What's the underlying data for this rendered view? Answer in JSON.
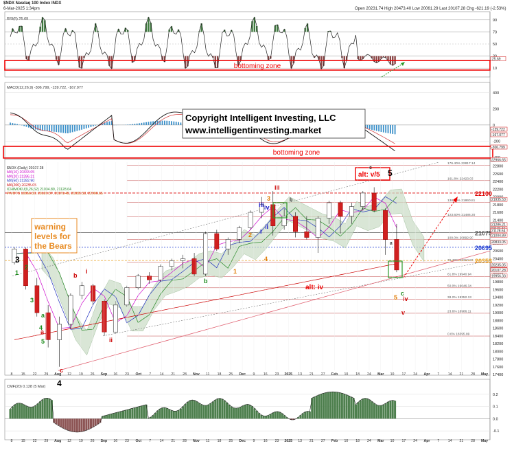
{
  "header": {
    "symbol": "$NDX Nasdaq 100 Index INDX",
    "datetime": "6-Mar-2025 1:34pm",
    "ohlc": "Open 20231.74  High 20473.40  Low 20061.29  Last 20107.28  Chg -621.19 (-2.53%)"
  },
  "rsi_panel": {
    "legend": "RSI(5) 25.69",
    "zone_label": "bottoming zone",
    "ticks": [
      "90",
      "70",
      "50",
      "30",
      "10"
    ],
    "value_tag": "25.69"
  },
  "macd_panel": {
    "legend": "MACD(12,26,9) -306.799, -139.722, -167.077",
    "zone_label": "bottoming zone",
    "ticks": [
      "400",
      "200",
      "0",
      "-200",
      "-400"
    ],
    "tags": [
      "-139.722",
      "-167.077",
      "-306.799"
    ]
  },
  "copyright": {
    "line1": "Copyright Intelligent Investing, LLC",
    "line2": "www.intelligentinvesting.market"
  },
  "price_panel": {
    "legend": [
      {
        "text": "$NDX (Daily) 20107.28",
        "color": "#222222"
      },
      {
        "text": "MA(10) 20833.05",
        "color": "#cc00cc"
      },
      {
        "text": "MA(20) 21286.21",
        "color": "#cc00cc"
      },
      {
        "text": "MA(50) 21282.90",
        "color": "#1f2fbf"
      },
      {
        "text": "MA(200) 20235.05",
        "color": "#cc0000"
      },
      {
        "text": "ICHIMOKU(9,26,52) 21004.89, 21128.64",
        "color": "#2a8a2a"
      },
      {
        "text": "PIVOTS 19956.33, 20120.37, 21171.45, 21935.53, 22966.65",
        "color": "#cc6600"
      }
    ],
    "warning_text": "warning\nlevels for\nthe Bears",
    "alt_top_label": "alt: v/5",
    "alt_iv_label": "alt: iv",
    "levels": [
      {
        "label": "22100",
        "value": 22100,
        "color": "#dd0000"
      },
      {
        "label": "20353",
        "value": 20353,
        "color": "#e8a020"
      },
      {
        "label": "21075",
        "value": 21075,
        "color": "#555555"
      },
      {
        "label": "20695",
        "value": 20695,
        "color": "#1030d0"
      }
    ],
    "fib_labels": [
      {
        "text": "176.40% 22817.14",
        "value": 22817
      },
      {
        "text": "161.8% 22423.03",
        "value": 22423
      },
      {
        "text": "138.20% 21860.81",
        "value": 21861
      },
      {
        "text": "123.60% 21486.30",
        "value": 21486
      },
      {
        "text": "100.0% 20892.90",
        "value": 20893
      },
      {
        "text": "76.40% 20310.87",
        "value": 20311
      },
      {
        "text": "61.8% 19940.94",
        "value": 19941
      },
      {
        "text": "50.0% 19646.34",
        "value": 19646
      },
      {
        "text": "38.2% 19352.13",
        "value": 19352
      },
      {
        "text": "23.6% 18986.11",
        "value": 18986
      },
      {
        "text": "0.0% 18395.89",
        "value": 18396
      }
    ],
    "right_tags": [
      "22966.65",
      "21935.53",
      "21286.21",
      "21171.45",
      "21128.64",
      "21004.89",
      "20833.05",
      "20235.05",
      "20120.37",
      "20107.28",
      "19956.33"
    ],
    "y_ticks": [
      "22800",
      "22600",
      "22400",
      "22200",
      "22000",
      "21800",
      "21600",
      "21400",
      "21200",
      "21000",
      "20800",
      "20600",
      "20400",
      "20200",
      "20000",
      "19800",
      "19600",
      "19400",
      "19200",
      "19000",
      "18800",
      "18600",
      "18400",
      "18200",
      "18000",
      "17800",
      "17600",
      "17400"
    ],
    "wave_labels": [
      {
        "text": "3",
        "color": "#000000",
        "big": true
      },
      {
        "text": "4",
        "color": "#000000",
        "big": true
      },
      {
        "text": "5",
        "color": "#000000",
        "big": true
      },
      {
        "text": "1",
        "color": "#1a8a1a"
      },
      {
        "text": "2",
        "color": "#1a8a1a"
      },
      {
        "text": "3",
        "color": "#1a8a1a"
      },
      {
        "text": "4",
        "color": "#1a8a1a"
      },
      {
        "text": "5",
        "color": "#1a8a1a"
      },
      {
        "text": "a",
        "color": "#1a8a1a"
      },
      {
        "text": "b",
        "color": "#1a8a1a"
      },
      {
        "text": "c",
        "color": "#1a8a1a"
      },
      {
        "text": "i",
        "color": "#cc0000"
      },
      {
        "text": "ii",
        "color": "#cc0000"
      },
      {
        "text": "iii",
        "color": "#cc0000"
      },
      {
        "text": "iv",
        "color": "#cc0000"
      },
      {
        "text": "v",
        "color": "#cc0000"
      },
      {
        "text": "a",
        "color": "#cc0000"
      },
      {
        "text": "b",
        "color": "#cc0000"
      },
      {
        "text": "c",
        "color": "#cc0000"
      },
      {
        "text": "i",
        "color": "#1a1acc"
      },
      {
        "text": "ii",
        "color": "#1a1acc"
      },
      {
        "text": "iii",
        "color": "#1a1acc"
      },
      {
        "text": "iv",
        "color": "#1a1acc"
      },
      {
        "text": "1",
        "color": "#e07a00"
      },
      {
        "text": "2",
        "color": "#e07a00"
      },
      {
        "text": "3",
        "color": "#e07a00"
      },
      {
        "text": "4",
        "color": "#e07a00"
      },
      {
        "text": "5",
        "color": "#e07a00"
      },
      {
        "text": "a",
        "color": "#333333"
      },
      {
        "text": "b",
        "color": "#333333"
      },
      {
        "text": "c",
        "color": "#333333"
      }
    ]
  },
  "cmf_panel": {
    "legend": "CMF(20) 0.128 (5 Mar)",
    "ticks": [
      "0.2",
      "0.1",
      "0.0",
      "-0.1"
    ]
  },
  "x_axis": {
    "labels": [
      "8",
      "15",
      "22",
      "29",
      "Aug",
      "12",
      "19",
      "26",
      "Sep",
      "16",
      "23",
      "Oct",
      "7",
      "14",
      "21",
      "28",
      "Nov",
      "11",
      "18",
      "25",
      "Dec",
      "9",
      "16",
      "23",
      "2025",
      "13",
      "21",
      "27",
      "Feb",
      "10",
      "18",
      "24",
      "Mar",
      "10",
      "17",
      "24",
      "Apr",
      "7",
      "14",
      "21",
      "28",
      "May"
    ]
  },
  "chart_data": {
    "type": "candlestick",
    "x_range": [
      "2024-07-08",
      "2025-05-01"
    ],
    "ylim": [
      17400,
      22900
    ],
    "ohlc_weekly_approx": [
      {
        "date": "2024-07-08",
        "open": 20300,
        "high": 20700,
        "low": 20250,
        "close": 20650
      },
      {
        "date": "2024-07-15",
        "open": 20650,
        "high": 20690,
        "low": 19600,
        "close": 19700
      },
      {
        "date": "2024-07-22",
        "open": 19700,
        "high": 19900,
        "low": 18900,
        "close": 19000
      },
      {
        "date": "2024-07-29",
        "open": 19000,
        "high": 19200,
        "low": 18100,
        "close": 18300
      },
      {
        "date": "2024-08-05",
        "open": 18300,
        "high": 18900,
        "low": 17600,
        "close": 18700
      },
      {
        "date": "2024-08-12",
        "open": 18700,
        "high": 19500,
        "low": 18600,
        "close": 19450
      },
      {
        "date": "2024-08-19",
        "open": 19450,
        "high": 19800,
        "low": 19350,
        "close": 19700
      },
      {
        "date": "2024-08-26",
        "open": 19700,
        "high": 19750,
        "low": 19200,
        "close": 19300
      },
      {
        "date": "2024-09-02",
        "open": 19300,
        "high": 19350,
        "low": 18400,
        "close": 18500
      },
      {
        "date": "2024-09-09",
        "open": 18500,
        "high": 19300,
        "low": 18450,
        "close": 19200
      },
      {
        "date": "2024-09-16",
        "open": 19200,
        "high": 19700,
        "low": 19150,
        "close": 19650
      },
      {
        "date": "2024-09-23",
        "open": 19650,
        "high": 20000,
        "low": 19600,
        "close": 19950
      },
      {
        "date": "2024-09-30",
        "open": 19950,
        "high": 20050,
        "low": 19750,
        "close": 19850
      },
      {
        "date": "2024-10-07",
        "open": 19850,
        "high": 20250,
        "low": 19800,
        "close": 20200
      },
      {
        "date": "2024-10-14",
        "open": 20200,
        "high": 20400,
        "low": 20100,
        "close": 20350
      },
      {
        "date": "2024-10-21",
        "open": 20350,
        "high": 20500,
        "low": 20150,
        "close": 20400
      },
      {
        "date": "2024-10-28",
        "open": 20400,
        "high": 20550,
        "low": 19950,
        "close": 20000
      },
      {
        "date": "2024-11-04",
        "open": 20000,
        "high": 21100,
        "low": 19950,
        "close": 21050
      },
      {
        "date": "2024-11-11",
        "open": 21050,
        "high": 21150,
        "low": 20600,
        "close": 20650
      },
      {
        "date": "2024-11-18",
        "open": 20650,
        "high": 20950,
        "low": 20500,
        "close": 20900
      },
      {
        "date": "2024-11-25",
        "open": 20900,
        "high": 21250,
        "low": 20800,
        "close": 21200
      },
      {
        "date": "2024-12-02",
        "open": 21200,
        "high": 21650,
        "low": 21150,
        "close": 21600
      },
      {
        "date": "2024-12-09",
        "open": 21600,
        "high": 22000,
        "low": 21450,
        "close": 21800
      },
      {
        "date": "2024-12-16",
        "open": 21800,
        "high": 22150,
        "low": 21000,
        "close": 21250
      },
      {
        "date": "2024-12-23",
        "open": 21250,
        "high": 21700,
        "low": 21150,
        "close": 21500
      },
      {
        "date": "2024-12-30",
        "open": 21500,
        "high": 21600,
        "low": 20950,
        "close": 21100
      },
      {
        "date": "2025-01-06",
        "open": 21100,
        "high": 21500,
        "low": 20900,
        "close": 20950
      },
      {
        "date": "2025-01-13",
        "open": 20950,
        "high": 21500,
        "low": 20550,
        "close": 21450
      },
      {
        "date": "2025-01-20",
        "open": 21450,
        "high": 21900,
        "low": 21300,
        "close": 21850
      },
      {
        "date": "2025-01-27",
        "open": 21850,
        "high": 21900,
        "low": 21050,
        "close": 21500
      },
      {
        "date": "2025-02-03",
        "open": 21500,
        "high": 21850,
        "low": 21300,
        "close": 21750
      },
      {
        "date": "2025-02-10",
        "open": 21750,
        "high": 22150,
        "low": 21650,
        "close": 22100
      },
      {
        "date": "2025-02-17",
        "open": 22100,
        "high": 22250,
        "low": 21600,
        "close": 21650
      },
      {
        "date": "2025-02-24",
        "open": 21650,
        "high": 21700,
        "low": 20500,
        "close": 20900
      },
      {
        "date": "2025-03-03",
        "open": 20900,
        "high": 21300,
        "low": 20050,
        "close": 20107
      }
    ]
  }
}
